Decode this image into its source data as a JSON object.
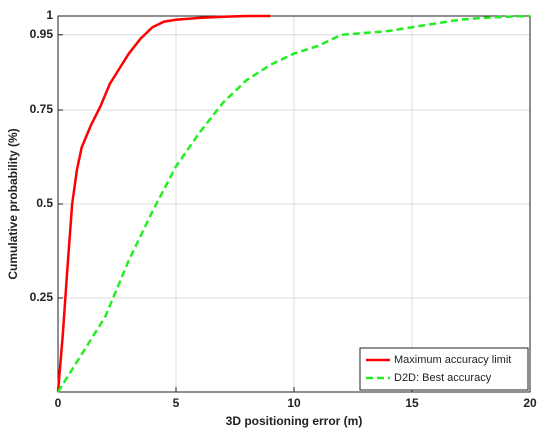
{
  "chart_data": {
    "type": "line",
    "x_label": "3D positioning error (m)",
    "y_label": "Cumulative probability (%)",
    "xlim": [
      0,
      20
    ],
    "xticks": [
      0,
      5,
      10,
      15,
      20
    ],
    "ylim": [
      0,
      1
    ],
    "yticks": [
      0.25,
      0.5,
      0.75,
      0.95,
      1
    ],
    "grid": true,
    "legend": "lower right",
    "series": [
      {
        "name": "Maximum accuracy limit",
        "color": "#ff0000",
        "dash": "solid",
        "x": [
          0,
          0.2,
          0.4,
          0.6,
          0.8,
          1,
          1.4,
          1.8,
          2.2,
          2.6,
          3,
          3.5,
          4,
          4.5,
          5,
          6,
          7,
          8,
          9
        ],
        "values": [
          0,
          0.15,
          0.33,
          0.5,
          0.59,
          0.65,
          0.71,
          0.76,
          0.82,
          0.86,
          0.9,
          0.94,
          0.97,
          0.985,
          0.99,
          0.995,
          0.998,
          1,
          1
        ]
      },
      {
        "name": "D2D: Best accuracy",
        "color": "#22ee22",
        "dash": "dashed",
        "x": [
          0,
          1,
          2,
          3,
          4,
          5,
          6,
          7,
          8,
          9,
          10,
          11,
          12,
          13,
          14,
          15,
          16,
          17,
          18,
          19,
          20
        ],
        "values": [
          0,
          0.1,
          0.2,
          0.35,
          0.48,
          0.6,
          0.69,
          0.77,
          0.83,
          0.87,
          0.9,
          0.92,
          0.95,
          0.955,
          0.96,
          0.97,
          0.98,
          0.99,
          0.995,
          0.998,
          1
        ]
      }
    ]
  }
}
